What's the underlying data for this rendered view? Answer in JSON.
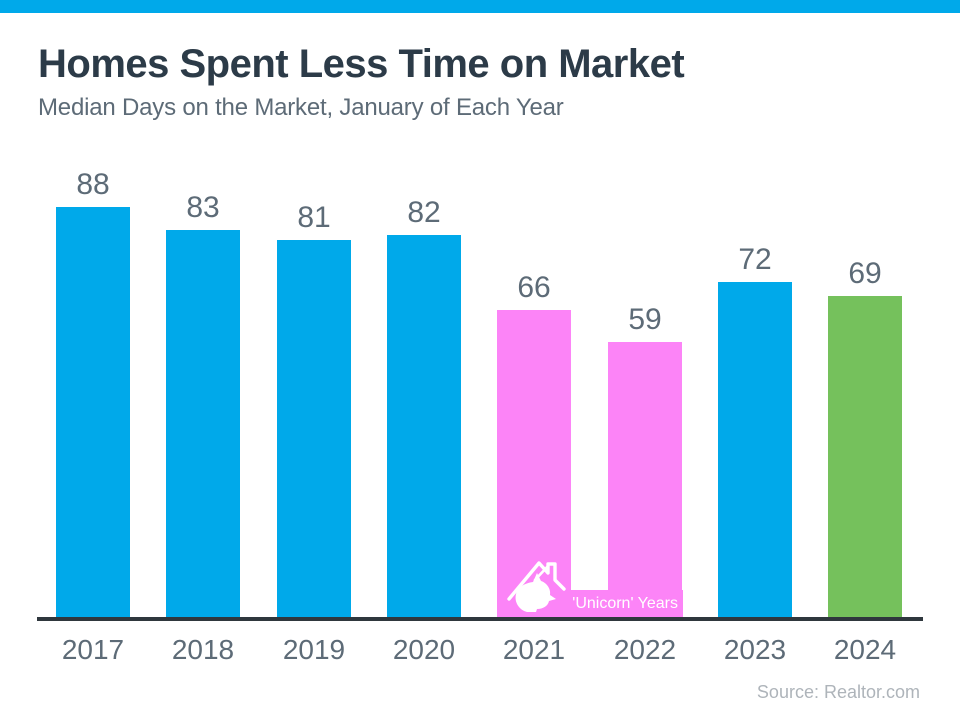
{
  "page": {
    "title": "Homes Spent Less Time on Market",
    "subtitle": "Median Days on the Market, January of Each Year",
    "source": "Source: Realtor.com"
  },
  "colors": {
    "accent_strip": "#00A9EA",
    "blue": "#00A9EA",
    "pink": "#FC84F7",
    "green": "#75C15C",
    "title_text": "#2C3B48",
    "label_text": "#5D6B77",
    "axis": "#2F373D",
    "source_text": "#AEB4BA",
    "annotation_text": "#FFFFFF"
  },
  "icons": {
    "unicorn_house": "unicorn-house-icon"
  },
  "chart_data": {
    "type": "bar",
    "title": "Homes Spent Less Time on Market",
    "subtitle": "Median Days on the Market, January of Each Year",
    "categories": [
      "2017",
      "2018",
      "2019",
      "2020",
      "2021",
      "2022",
      "2023",
      "2024"
    ],
    "values": [
      88,
      83,
      81,
      82,
      66,
      59,
      72,
      69
    ],
    "bar_colors": [
      "blue",
      "blue",
      "blue",
      "blue",
      "pink",
      "pink",
      "blue",
      "green"
    ],
    "value_labels_shown": true,
    "grid": false,
    "legend": "none",
    "ylim": [
      0,
      96
    ],
    "annotation": {
      "label": "'Unicorn' Years",
      "applies_to": [
        "2021",
        "2022"
      ],
      "icon": "unicorn-house-icon"
    },
    "source": "Source: Realtor.com"
  }
}
